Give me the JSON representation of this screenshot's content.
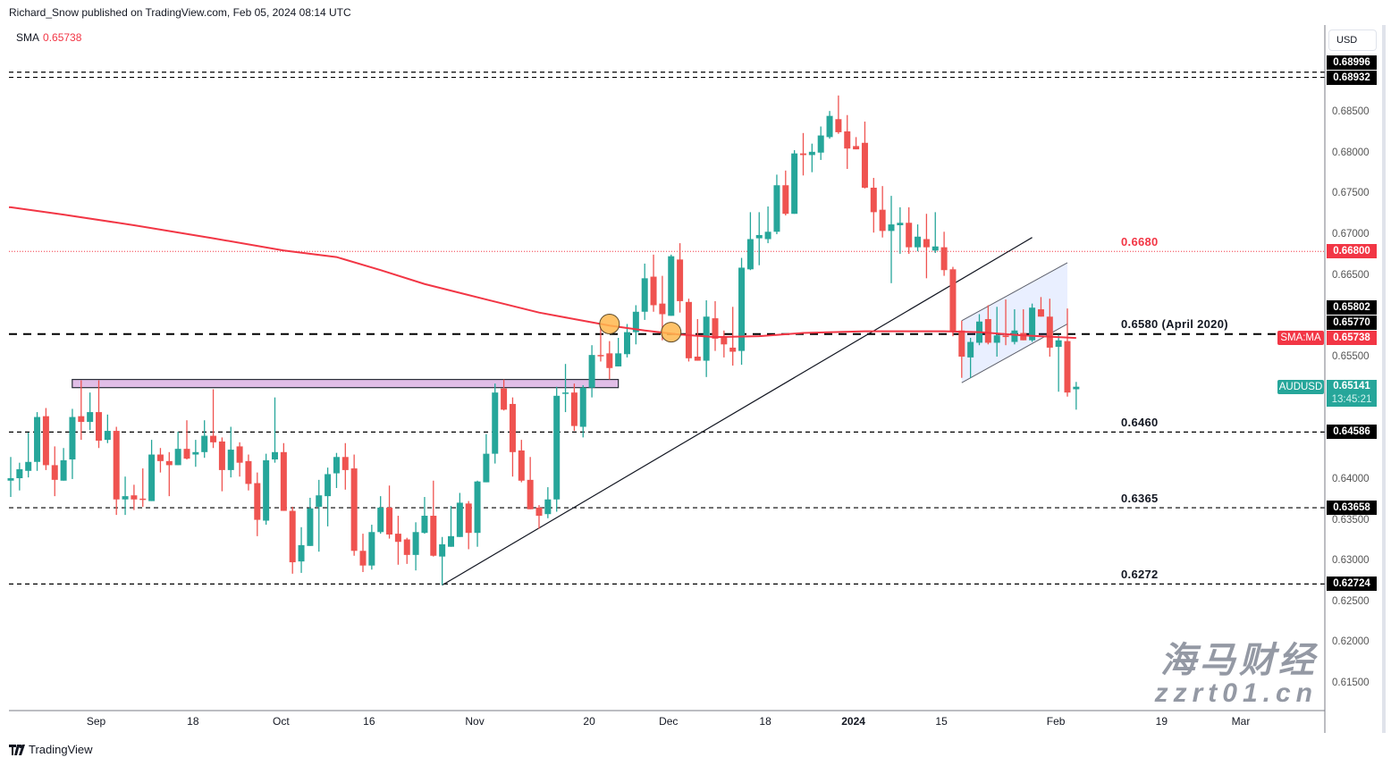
{
  "header": {
    "published": "Richard_Snow published on TradingView.com, Feb 05, 2024 08:14 UTC"
  },
  "legend": {
    "label": "SMA",
    "value": "0.65738"
  },
  "price_axis": {
    "currency_button": "USD",
    "ticks": [
      "0.68500",
      "0.68000",
      "0.67500",
      "0.67000",
      "0.66500",
      "0.65500",
      "0.64000",
      "0.63500",
      "0.63000",
      "0.62500",
      "0.62000",
      "0.61500"
    ],
    "markers": [
      {
        "value": "0.68996",
        "color": "#000000"
      },
      {
        "value": "0.68932",
        "color": "#000000"
      },
      {
        "value": "0.66800",
        "color": "#f23645"
      },
      {
        "value": "0.65802",
        "color": "#000000"
      },
      {
        "value": "0.65770",
        "color": "#000000"
      },
      {
        "value": "0.65738",
        "color": "#f23645",
        "tag": "SMA:MA"
      },
      {
        "value": "0.65141",
        "color": "#26a69a",
        "tag": "AUDUSD",
        "countdown": "13:45:21"
      },
      {
        "value": "0.64586",
        "color": "#000000"
      },
      {
        "value": "0.63658",
        "color": "#000000"
      },
      {
        "value": "0.62724",
        "color": "#000000"
      }
    ]
  },
  "annotations": [
    {
      "text": "0.6680",
      "price": 0.668,
      "color": "#f23645"
    },
    {
      "text": "0.6580 (April 2020)",
      "price": 0.658,
      "color": "#131722"
    },
    {
      "text": "0.6460",
      "price": 0.64586,
      "color": "#131722"
    },
    {
      "text": "0.6365",
      "price": 0.63658,
      "color": "#131722"
    },
    {
      "text": "0.6272",
      "price": 0.62724,
      "color": "#131722"
    }
  ],
  "footer": {
    "logo": "TradingView"
  },
  "watermark": {
    "cn": "海马财经",
    "url": "zzrt01.cn"
  },
  "chart_data": {
    "type": "candlestick",
    "symbol": "AUDUSD",
    "interval": "1D",
    "ylim": [
      0.6115,
      0.694
    ],
    "colors": {
      "up": "#26a69a",
      "down": "#ef5350",
      "sma": "#f23645"
    },
    "x_ticks": [
      {
        "label": "Sep",
        "date": "2023-09-01"
      },
      {
        "label": "18",
        "date": "2023-09-18"
      },
      {
        "label": "Oct",
        "date": "2023-10-02"
      },
      {
        "label": "16",
        "date": "2023-10-16"
      },
      {
        "label": "Nov",
        "date": "2023-11-01"
      },
      {
        "label": "20",
        "date": "2023-11-20"
      },
      {
        "label": "Dec",
        "date": "2023-12-01"
      },
      {
        "label": "18",
        "date": "2023-12-18"
      },
      {
        "label": "2024",
        "date": "2024-01-01"
      },
      {
        "label": "15",
        "date": "2024-01-15"
      },
      {
        "label": "Feb",
        "date": "2024-02-01"
      },
      {
        "label": "19",
        "date": "2024-02-19"
      },
      {
        "label": "Mar",
        "date": "2024-03-01"
      }
    ],
    "candles_fields": [
      "date",
      "open",
      "high",
      "low",
      "close"
    ],
    "candles": [
      [
        "2023-08-18",
        0.6399,
        0.6428,
        0.6379,
        0.6402
      ],
      [
        "2023-08-21",
        0.6402,
        0.6421,
        0.6387,
        0.6413
      ],
      [
        "2023-08-22",
        0.6411,
        0.6458,
        0.6403,
        0.6422
      ],
      [
        "2023-08-23",
        0.6422,
        0.6483,
        0.6411,
        0.6477
      ],
      [
        "2023-08-24",
        0.6478,
        0.6488,
        0.6412,
        0.6418
      ],
      [
        "2023-08-25",
        0.6418,
        0.6441,
        0.638,
        0.64
      ],
      [
        "2023-08-28",
        0.6399,
        0.6439,
        0.6399,
        0.6424
      ],
      [
        "2023-08-29",
        0.6425,
        0.6487,
        0.6401,
        0.6477
      ],
      [
        "2023-08-30",
        0.6478,
        0.6522,
        0.6449,
        0.6471
      ],
      [
        "2023-08-31",
        0.6471,
        0.6507,
        0.6461,
        0.6483
      ],
      [
        "2023-09-01",
        0.6483,
        0.6522,
        0.6439,
        0.6448
      ],
      [
        "2023-09-04",
        0.6449,
        0.648,
        0.6445,
        0.646
      ],
      [
        "2023-09-05",
        0.646,
        0.6465,
        0.6357,
        0.6376
      ],
      [
        "2023-09-06",
        0.6376,
        0.6404,
        0.6357,
        0.638
      ],
      [
        "2023-09-07",
        0.6381,
        0.6394,
        0.6363,
        0.6376
      ],
      [
        "2023-09-08",
        0.6377,
        0.6414,
        0.6367,
        0.6376
      ],
      [
        "2023-09-11",
        0.6374,
        0.6449,
        0.6374,
        0.6431
      ],
      [
        "2023-09-12",
        0.6431,
        0.6439,
        0.6409,
        0.6423
      ],
      [
        "2023-09-13",
        0.6423,
        0.6434,
        0.638,
        0.6418
      ],
      [
        "2023-09-14",
        0.6418,
        0.6459,
        0.6418,
        0.6438
      ],
      [
        "2023-09-15",
        0.6438,
        0.6473,
        0.6425,
        0.6426
      ],
      [
        "2023-09-18",
        0.6431,
        0.6449,
        0.6416,
        0.6434
      ],
      [
        "2023-09-19",
        0.6434,
        0.6473,
        0.6427,
        0.6454
      ],
      [
        "2023-09-20",
        0.6454,
        0.6511,
        0.6439,
        0.6446
      ],
      [
        "2023-09-21",
        0.6447,
        0.6452,
        0.6386,
        0.6412
      ],
      [
        "2023-09-22",
        0.6412,
        0.6465,
        0.6403,
        0.6437
      ],
      [
        "2023-09-25",
        0.6441,
        0.6446,
        0.6404,
        0.6421
      ],
      [
        "2023-09-26",
        0.6423,
        0.6431,
        0.6387,
        0.6395
      ],
      [
        "2023-09-27",
        0.6396,
        0.6409,
        0.6331,
        0.6351
      ],
      [
        "2023-09-28",
        0.635,
        0.6432,
        0.6345,
        0.6424
      ],
      [
        "2023-09-29",
        0.6425,
        0.6501,
        0.6421,
        0.6434
      ],
      [
        "2023-10-02",
        0.6434,
        0.6445,
        0.6362,
        0.6362
      ],
      [
        "2023-10-03",
        0.6362,
        0.6367,
        0.6285,
        0.6299
      ],
      [
        "2023-10-04",
        0.63,
        0.6342,
        0.6286,
        0.632
      ],
      [
        "2023-10-05",
        0.6319,
        0.6378,
        0.6319,
        0.6365
      ],
      [
        "2023-10-06",
        0.6367,
        0.64,
        0.6312,
        0.6381
      ],
      [
        "2023-10-09",
        0.638,
        0.6415,
        0.6343,
        0.6407
      ],
      [
        "2023-10-10",
        0.6408,
        0.6433,
        0.639,
        0.6428
      ],
      [
        "2023-10-11",
        0.6428,
        0.6445,
        0.6388,
        0.6412
      ],
      [
        "2023-10-12",
        0.6414,
        0.6431,
        0.6307,
        0.6313
      ],
      [
        "2023-10-13",
        0.6313,
        0.6334,
        0.6287,
        0.6295
      ],
      [
        "2023-10-16",
        0.6295,
        0.6345,
        0.629,
        0.6336
      ],
      [
        "2023-10-17",
        0.6336,
        0.638,
        0.6334,
        0.6366
      ],
      [
        "2023-10-18",
        0.6366,
        0.6393,
        0.6328,
        0.6333
      ],
      [
        "2023-10-19",
        0.6334,
        0.6356,
        0.6296,
        0.6324
      ],
      [
        "2023-10-20",
        0.6327,
        0.6329,
        0.6297,
        0.6308
      ],
      [
        "2023-10-23",
        0.6308,
        0.6348,
        0.6289,
        0.6336
      ],
      [
        "2023-10-24",
        0.6335,
        0.6379,
        0.6334,
        0.6356
      ],
      [
        "2023-10-25",
        0.6356,
        0.6399,
        0.6306,
        0.6307
      ],
      [
        "2023-10-26",
        0.6306,
        0.633,
        0.6271,
        0.6321
      ],
      [
        "2023-10-27",
        0.6318,
        0.6368,
        0.6318,
        0.6331
      ],
      [
        "2023-10-30",
        0.633,
        0.6384,
        0.633,
        0.6372
      ],
      [
        "2023-10-31",
        0.6371,
        0.6374,
        0.6315,
        0.6335
      ],
      [
        "2023-11-01",
        0.6335,
        0.6399,
        0.6318,
        0.6398
      ],
      [
        "2023-11-02",
        0.6397,
        0.6456,
        0.6397,
        0.6432
      ],
      [
        "2023-11-03",
        0.6432,
        0.6518,
        0.642,
        0.6507
      ],
      [
        "2023-11-06",
        0.6512,
        0.6523,
        0.6485,
        0.6486
      ],
      [
        "2023-11-07",
        0.6493,
        0.6501,
        0.6404,
        0.6434
      ],
      [
        "2023-11-08",
        0.6436,
        0.6449,
        0.6397,
        0.6399
      ],
      [
        "2023-11-09",
        0.64,
        0.6428,
        0.6364,
        0.6364
      ],
      [
        "2023-11-10",
        0.6366,
        0.6369,
        0.634,
        0.6356
      ],
      [
        "2023-11-13",
        0.6358,
        0.6391,
        0.6353,
        0.6376
      ],
      [
        "2023-11-14",
        0.6376,
        0.6514,
        0.6361,
        0.6503
      ],
      [
        "2023-11-15",
        0.6506,
        0.6542,
        0.6483,
        0.6507
      ],
      [
        "2023-11-16",
        0.6507,
        0.6518,
        0.646,
        0.6466
      ],
      [
        "2023-11-17",
        0.6465,
        0.6516,
        0.6452,
        0.6513
      ],
      [
        "2023-11-20",
        0.6513,
        0.6565,
        0.6501,
        0.6553
      ],
      [
        "2023-11-21",
        0.6553,
        0.6588,
        0.6545,
        0.6552
      ],
      [
        "2023-11-22",
        0.6555,
        0.657,
        0.6523,
        0.6537
      ],
      [
        "2023-11-23",
        0.6539,
        0.6574,
        0.6539,
        0.6555
      ],
      [
        "2023-11-24",
        0.6554,
        0.6591,
        0.655,
        0.6581
      ],
      [
        "2023-11-27",
        0.6581,
        0.6614,
        0.6566,
        0.6606
      ],
      [
        "2023-11-28",
        0.6606,
        0.6665,
        0.6596,
        0.6647
      ],
      [
        "2023-11-29",
        0.6649,
        0.6676,
        0.6606,
        0.6614
      ],
      [
        "2023-11-30",
        0.6616,
        0.665,
        0.6571,
        0.6603
      ],
      [
        "2023-12-01",
        0.6601,
        0.6676,
        0.6601,
        0.6674
      ],
      [
        "2023-12-04",
        0.667,
        0.669,
        0.6605,
        0.6619
      ],
      [
        "2023-12-05",
        0.6618,
        0.6622,
        0.6545,
        0.6549
      ],
      [
        "2023-12-06",
        0.6551,
        0.6597,
        0.6546,
        0.6546
      ],
      [
        "2023-12-07",
        0.6546,
        0.662,
        0.6526,
        0.66
      ],
      [
        "2023-12-08",
        0.6598,
        0.6619,
        0.6558,
        0.6573
      ],
      [
        "2023-12-11",
        0.6576,
        0.6583,
        0.655,
        0.6566
      ],
      [
        "2023-12-12",
        0.6562,
        0.6612,
        0.654,
        0.6557
      ],
      [
        "2023-12-13",
        0.6558,
        0.6672,
        0.6541,
        0.666
      ],
      [
        "2023-12-14",
        0.6658,
        0.6728,
        0.6657,
        0.6695
      ],
      [
        "2023-12-15",
        0.6696,
        0.6728,
        0.6663,
        0.67
      ],
      [
        "2023-12-18",
        0.6695,
        0.6735,
        0.669,
        0.6704
      ],
      [
        "2023-12-19",
        0.6704,
        0.6774,
        0.6701,
        0.6761
      ],
      [
        "2023-12-20",
        0.6761,
        0.6779,
        0.6724,
        0.6726
      ],
      [
        "2023-12-21",
        0.6726,
        0.6804,
        0.6726,
        0.68
      ],
      [
        "2023-12-22",
        0.68,
        0.6825,
        0.6773,
        0.6798
      ],
      [
        "2023-12-25",
        0.6798,
        0.6812,
        0.6777,
        0.6802
      ],
      [
        "2023-12-26",
        0.6801,
        0.6833,
        0.6792,
        0.6822
      ],
      [
        "2023-12-27",
        0.682,
        0.6852,
        0.6818,
        0.6846
      ],
      [
        "2023-12-28",
        0.6842,
        0.6871,
        0.6824,
        0.6826
      ],
      [
        "2023-12-29",
        0.6827,
        0.6847,
        0.6781,
        0.6806
      ],
      [
        "2024-01-01",
        0.6809,
        0.682,
        0.6805,
        0.6805
      ],
      [
        "2024-01-02",
        0.6813,
        0.6839,
        0.6757,
        0.6758
      ],
      [
        "2024-01-03",
        0.6758,
        0.677,
        0.6703,
        0.6728
      ],
      [
        "2024-01-04",
        0.6731,
        0.676,
        0.6697,
        0.6705
      ],
      [
        "2024-01-05",
        0.6705,
        0.6748,
        0.6641,
        0.6713
      ],
      [
        "2024-01-08",
        0.6712,
        0.6734,
        0.6677,
        0.6715
      ],
      [
        "2024-01-09",
        0.6715,
        0.6734,
        0.6677,
        0.6685
      ],
      [
        "2024-01-10",
        0.6685,
        0.6713,
        0.668,
        0.6698
      ],
      [
        "2024-01-11",
        0.6695,
        0.6726,
        0.6647,
        0.6685
      ],
      [
        "2024-01-12",
        0.6681,
        0.6728,
        0.6678,
        0.6686
      ],
      [
        "2024-01-15",
        0.6685,
        0.6704,
        0.665,
        0.6657
      ],
      [
        "2024-01-16",
        0.6658,
        0.6661,
        0.6576,
        0.6582
      ],
      [
        "2024-01-17",
        0.6583,
        0.6595,
        0.6525,
        0.6551
      ],
      [
        "2024-01-18",
        0.655,
        0.6574,
        0.6525,
        0.6569
      ],
      [
        "2024-01-19",
        0.6568,
        0.6603,
        0.6565,
        0.6594
      ],
      [
        "2024-01-22",
        0.6597,
        0.6614,
        0.6566,
        0.6568
      ],
      [
        "2024-01-23",
        0.6568,
        0.6612,
        0.6551,
        0.6577
      ],
      [
        "2024-01-24",
        0.6577,
        0.6621,
        0.6565,
        0.6575
      ],
      [
        "2024-01-25",
        0.6569,
        0.6609,
        0.6566,
        0.6583
      ],
      [
        "2024-01-26",
        0.658,
        0.6609,
        0.6571,
        0.6571
      ],
      [
        "2024-01-29",
        0.6571,
        0.6616,
        0.6569,
        0.6611
      ],
      [
        "2024-01-30",
        0.6609,
        0.6624,
        0.66,
        0.66
      ],
      [
        "2024-01-31",
        0.66,
        0.6622,
        0.6551,
        0.6562
      ],
      [
        "2024-02-01",
        0.6563,
        0.6578,
        0.6508,
        0.6571
      ],
      [
        "2024-02-02",
        0.657,
        0.661,
        0.6502,
        0.6507
      ],
      [
        "2024-02-05",
        0.6511,
        0.652,
        0.6486,
        0.65141
      ]
    ],
    "sma": {
      "name": "SMA",
      "points": [
        [
          "2023-08-18",
          0.6734
        ],
        [
          "2023-08-28",
          0.6725
        ],
        [
          "2023-09-07",
          0.6712
        ],
        [
          "2023-09-20",
          0.6696
        ],
        [
          "2023-10-02",
          0.6681
        ],
        [
          "2023-10-10",
          0.6673
        ],
        [
          "2023-10-17",
          0.6657
        ],
        [
          "2023-10-24",
          0.664
        ],
        [
          "2023-11-02",
          0.6621
        ],
        [
          "2023-11-10",
          0.6605
        ],
        [
          "2023-11-16",
          0.6597
        ],
        [
          "2023-11-22",
          0.6589
        ],
        [
          "2023-11-28",
          0.6583
        ],
        [
          "2023-12-04",
          0.6578
        ],
        [
          "2023-12-08",
          0.6575
        ],
        [
          "2023-12-15",
          0.6576
        ],
        [
          "2023-12-22",
          0.658
        ],
        [
          "2024-01-02",
          0.6582
        ],
        [
          "2024-01-15",
          0.6582
        ],
        [
          "2024-01-19",
          0.6581
        ],
        [
          "2024-01-26",
          0.6577
        ],
        [
          "2024-02-05",
          0.65738
        ]
      ]
    },
    "horizontal_lines": [
      {
        "price": 0.68996,
        "style": "dashed",
        "color": "#000000"
      },
      {
        "price": 0.68932,
        "style": "dashed",
        "color": "#000000"
      },
      {
        "price": 0.668,
        "style": "dotted",
        "color": "#f23645"
      },
      {
        "price": 0.65786,
        "style": "dashed-bold",
        "color": "#000000"
      },
      {
        "price": 0.64586,
        "style": "dashed",
        "color": "#000000"
      },
      {
        "price": 0.63658,
        "style": "dashed",
        "color": "#000000"
      },
      {
        "price": 0.62724,
        "style": "dashed",
        "color": "#000000"
      }
    ],
    "zone": {
      "from": "2023-08-30",
      "to": "2023-11-23",
      "top": 0.6523,
      "bottom": 0.6513,
      "color": "#e1bee7"
    },
    "trendline": {
      "from": [
        "2023-10-26",
        0.6271
      ],
      "to": [
        "2024-01-29",
        0.6697
      ]
    },
    "channel": {
      "from": "2024-01-17",
      "to": "2024-02-02",
      "upper": [
        0.6595,
        0.6666
      ],
      "lower": [
        0.6519,
        0.6591
      ],
      "color": "#2962ff"
    },
    "markers": [
      {
        "date": "2023-11-22",
        "price": 0.6591
      },
      {
        "date": "2023-12-01",
        "price": 0.6581
      }
    ]
  }
}
